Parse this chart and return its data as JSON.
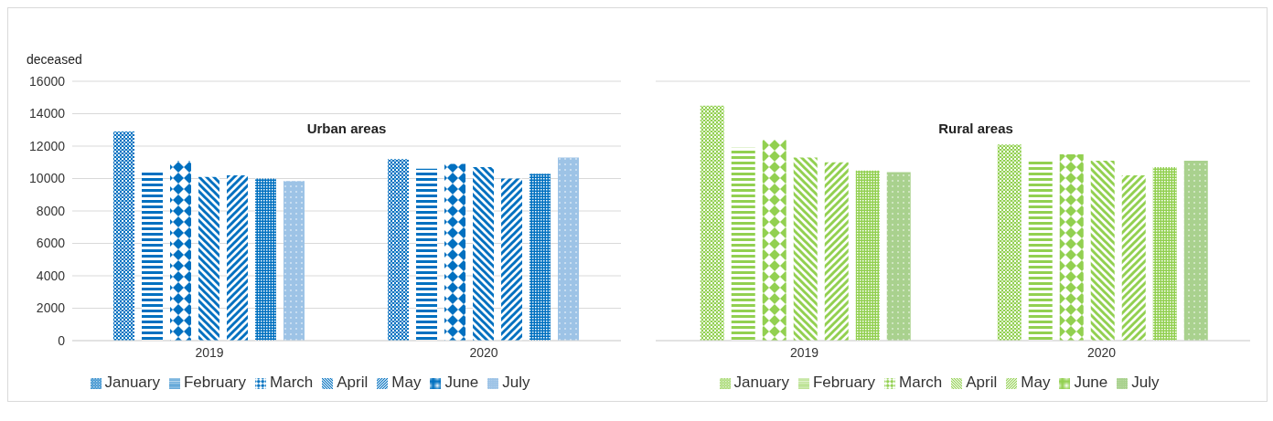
{
  "chart_data": [
    {
      "type": "bar",
      "title": "Urban areas",
      "ylabel": "deceased",
      "categories": [
        "2019",
        "2020"
      ],
      "ylim": [
        0,
        16000
      ],
      "yticks": [
        0,
        2000,
        4000,
        6000,
        8000,
        10000,
        12000,
        14000,
        16000
      ],
      "grid": "y",
      "legend": "bottom",
      "series": [
        {
          "name": "January",
          "color": "#0070c0",
          "values": [
            12900,
            11200
          ]
        },
        {
          "name": "February",
          "color": "#0070c0",
          "values": [
            10500,
            10600
          ]
        },
        {
          "name": "March",
          "color": "#0070c0",
          "values": [
            11100,
            10900
          ]
        },
        {
          "name": "April",
          "color": "#0070c0",
          "values": [
            10100,
            10700
          ]
        },
        {
          "name": "May",
          "color": "#0070c0",
          "values": [
            10200,
            10000
          ]
        },
        {
          "name": "June",
          "color": "#0070c0",
          "values": [
            10000,
            10300
          ]
        },
        {
          "name": "July",
          "color": "#9dc3e6",
          "values": [
            9850,
            11300
          ]
        }
      ]
    },
    {
      "type": "bar",
      "title": "Rural areas",
      "categories": [
        "2019",
        "2020"
      ],
      "ylim": [
        0,
        16000
      ],
      "yticks": [
        0,
        2000,
        4000,
        6000,
        8000,
        10000,
        12000,
        14000,
        16000
      ],
      "tick_labels": "x",
      "grid": "y",
      "legend": "bottom",
      "series": [
        {
          "name": "January",
          "color": "#92d050",
          "values": [
            14500,
            12100
          ]
        },
        {
          "name": "February",
          "color": "#92d050",
          "values": [
            11900,
            11100
          ]
        },
        {
          "name": "March",
          "color": "#92d050",
          "values": [
            12400,
            11500
          ]
        },
        {
          "name": "April",
          "color": "#92d050",
          "values": [
            11300,
            11100
          ]
        },
        {
          "name": "May",
          "color": "#92d050",
          "values": [
            11000,
            10200
          ]
        },
        {
          "name": "June",
          "color": "#92d050",
          "values": [
            10500,
            10700
          ]
        },
        {
          "name": "July",
          "color": "#a9d18e",
          "values": [
            10400,
            11100
          ]
        }
      ]
    }
  ]
}
